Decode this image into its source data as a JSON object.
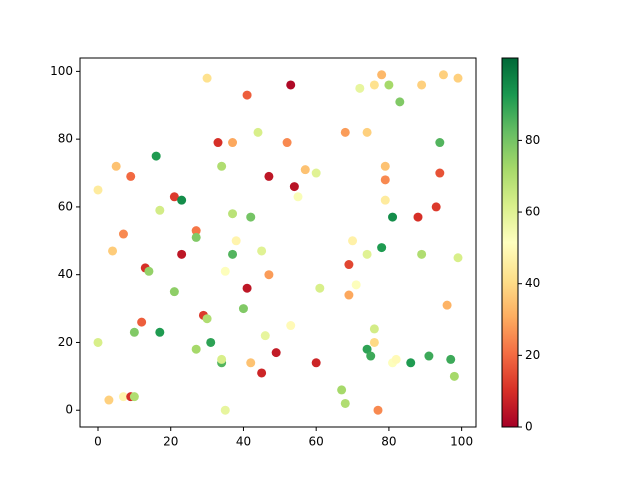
{
  "chart_data": {
    "type": "scatter",
    "colormap": "RdYlGn",
    "x": [
      0,
      0,
      3,
      4,
      5,
      7,
      7,
      9,
      9,
      10,
      10,
      12,
      13,
      14,
      16,
      17,
      17,
      21,
      21,
      23,
      23,
      27,
      27,
      27,
      29,
      30,
      30,
      31,
      33,
      34,
      34,
      34,
      35,
      35,
      37,
      37,
      37,
      38,
      40,
      41,
      41,
      42,
      42,
      44,
      45,
      45,
      46,
      47,
      47,
      49,
      52,
      53,
      53,
      54,
      55,
      57,
      60,
      60,
      61,
      67,
      68,
      68,
      69,
      69,
      70,
      71,
      72,
      74,
      74,
      74,
      75,
      76,
      76,
      76,
      77,
      78,
      78,
      79,
      79,
      79,
      80,
      81,
      81,
      82,
      83,
      86,
      88,
      89,
      89,
      91,
      93,
      94,
      94,
      95,
      96,
      97,
      98,
      99,
      99
    ],
    "values": [
      65,
      20,
      3,
      47,
      72,
      52,
      4,
      69,
      4,
      4,
      23,
      26,
      42,
      41,
      75,
      59,
      23,
      63,
      35,
      46,
      62,
      53,
      51,
      18,
      28,
      27,
      98,
      20,
      79,
      72,
      14,
      15,
      41,
      0,
      79,
      58,
      46,
      50,
      30,
      36,
      93,
      14,
      57,
      82,
      47,
      11,
      22,
      69,
      40,
      17,
      79,
      25,
      96,
      66,
      63,
      71,
      14,
      70,
      36,
      6,
      82,
      2,
      43,
      34,
      50,
      37,
      95,
      46,
      18,
      82,
      16,
      20,
      24,
      96,
      0,
      99,
      48,
      72,
      62,
      68,
      96,
      57,
      14,
      15,
      91,
      14,
      57,
      96,
      46,
      16,
      60,
      70,
      79,
      99,
      31,
      15,
      10,
      45,
      98
    ],
    "color_values": [
      45,
      62,
      38,
      37,
      35,
      25,
      48,
      20,
      10,
      70,
      78,
      18,
      10,
      75,
      92,
      63,
      92,
      12,
      76,
      5,
      95,
      22,
      78,
      72,
      12,
      70,
      42,
      90,
      10,
      70,
      85,
      62,
      52,
      58,
      30,
      68,
      85,
      48,
      78,
      5,
      18,
      35,
      80,
      62,
      60,
      8,
      58,
      5,
      28,
      6,
      25,
      50,
      2,
      4,
      53,
      35,
      8,
      60,
      62,
      72,
      28,
      70,
      14,
      30,
      47,
      52,
      58,
      60,
      90,
      38,
      88,
      40,
      63,
      42,
      25,
      33,
      92,
      35,
      45,
      25,
      72,
      95,
      52,
      50,
      78,
      92,
      10,
      38,
      70,
      88,
      12,
      16,
      85,
      38,
      32,
      88,
      72,
      62,
      38
    ],
    "xlim": [
      -4.95,
      103.95
    ],
    "ylim": [
      -4.95,
      103.95
    ],
    "clim": [
      0,
      103
    ],
    "xticks": [
      0,
      20,
      40,
      60,
      80,
      100
    ],
    "yticks": [
      0,
      20,
      40,
      60,
      80,
      100
    ],
    "cticks": [
      0,
      20,
      40,
      60,
      80
    ]
  }
}
